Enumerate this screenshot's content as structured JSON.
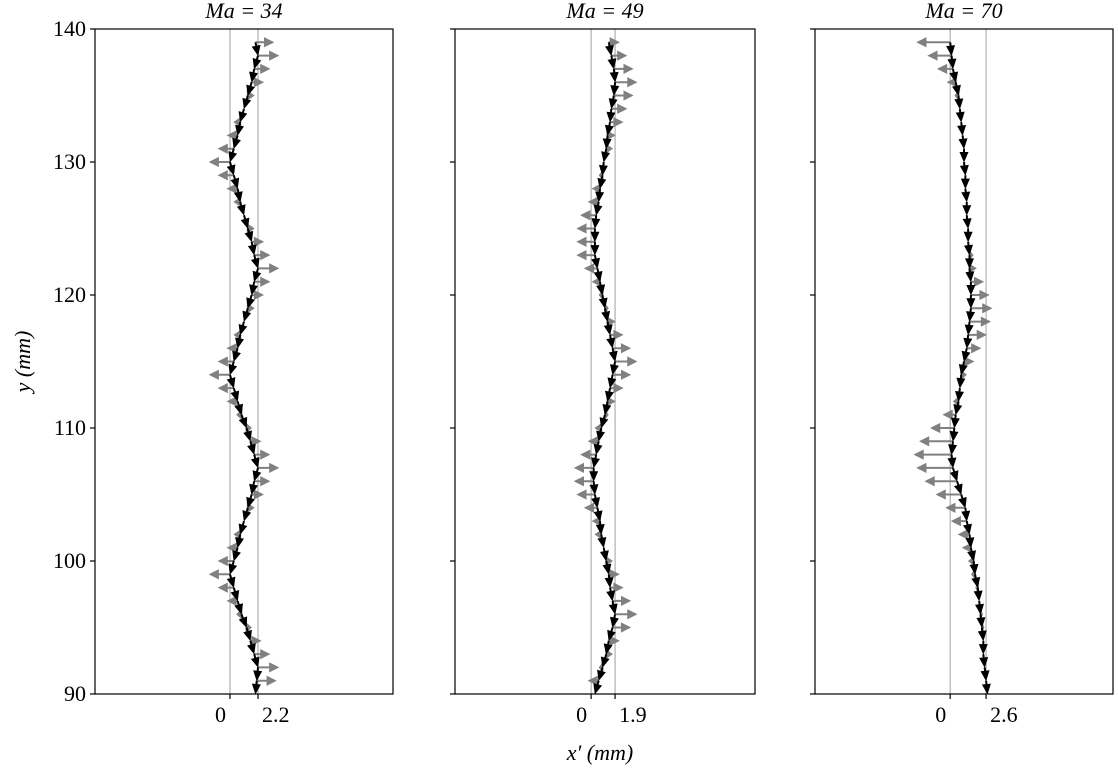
{
  "xlabel": "x′ (mm)",
  "chart_data": [
    {
      "type": "quiver",
      "title": "Ma = 34",
      "ylabel": "y (mm)",
      "show_ytick_labels": true,
      "xlim": [
        -10.6,
        12.8
      ],
      "ylim": [
        90,
        140
      ],
      "xticks": [
        0,
        2.2
      ],
      "yticks": [
        90,
        100,
        110,
        120,
        130,
        140
      ],
      "grid": true,
      "line_color": "#000000",
      "arrow_color": "#808080",
      "y": [
        91,
        92,
        93,
        94,
        95,
        96,
        97,
        98,
        99,
        100,
        101,
        102,
        103,
        104,
        105,
        106,
        107,
        108,
        109,
        110,
        111,
        112,
        113,
        114,
        115,
        116,
        117,
        118,
        119,
        120,
        121,
        122,
        123,
        124,
        125,
        126,
        127,
        128,
        129,
        130,
        131,
        132,
        133,
        134,
        135,
        136,
        137,
        138,
        139
      ],
      "x": [
        2.1,
        2.2,
        1.9,
        1.6,
        1.3,
        0.9,
        0.6,
        0.3,
        0,
        0.3,
        0.6,
        0.8,
        1.1,
        1.4,
        1.7,
        1.9,
        2.2,
        1.9,
        1.6,
        1.3,
        0.9,
        0.6,
        0.3,
        0,
        0.3,
        0.6,
        0.8,
        1.1,
        1.4,
        1.7,
        1.9,
        2.2,
        1.9,
        1.7,
        1.4,
        1.1,
        0.8,
        0.6,
        0.3,
        0,
        0.3,
        0.6,
        0.8,
        1.1,
        1.4,
        1.7,
        1.9,
        2.2,
        2.0
      ],
      "u": [
        1.4,
        1.5,
        1.1,
        0.7,
        0.3,
        -0.3,
        -0.7,
        -1.1,
        -1.5,
        -1.1,
        -0.7,
        -0.4,
        0,
        0.4,
        0.8,
        1.1,
        1.5,
        1.1,
        0.7,
        0.3,
        -0.3,
        -0.7,
        -1.1,
        -1.5,
        -1.1,
        -0.7,
        -0.4,
        0,
        0.4,
        0.8,
        1.1,
        1.5,
        1.1,
        0.8,
        0.4,
        0,
        -0.4,
        -0.7,
        -1.1,
        -1.5,
        -1.1,
        -0.7,
        -0.4,
        0,
        0.4,
        0.8,
        1.1,
        1.5,
        1.3
      ]
    },
    {
      "type": "quiver",
      "title": "Ma = 49",
      "show_ytick_labels": false,
      "xlim": [
        -10.8,
        13.0
      ],
      "ylim": [
        90,
        140
      ],
      "xticks": [
        0,
        1.9
      ],
      "yticks": [
        90,
        100,
        110,
        120,
        130,
        140
      ],
      "grid": true,
      "line_color": "#000000",
      "arrow_color": "#808080",
      "y": [
        91,
        92,
        93,
        94,
        95,
        96,
        97,
        98,
        99,
        100,
        101,
        102,
        103,
        104,
        105,
        106,
        107,
        108,
        109,
        110,
        111,
        112,
        113,
        114,
        115,
        116,
        117,
        118,
        119,
        120,
        121,
        122,
        123,
        124,
        125,
        126,
        127,
        128,
        129,
        130,
        131,
        132,
        133,
        134,
        135,
        136,
        137,
        138,
        139
      ],
      "x": [
        0.6,
        0.9,
        1.2,
        1.4,
        1.7,
        1.9,
        1.7,
        1.5,
        1.4,
        1.2,
        1.0,
        0.8,
        0.7,
        0.5,
        0.3,
        0.2,
        0.2,
        0.4,
        0.6,
        0.8,
        1.1,
        1.3,
        1.5,
        1.7,
        1.9,
        1.7,
        1.5,
        1.3,
        1.1,
        0.9,
        0.7,
        0.5,
        0.3,
        0.3,
        0.3,
        0.4,
        0.6,
        0.7,
        0.9,
        1.0,
        1.2,
        1.3,
        1.5,
        1.6,
        1.8,
        1.9,
        1.8,
        1.6,
        1.4
      ],
      "u": [
        -0.7,
        -0.2,
        0.4,
        0.7,
        1.3,
        1.6,
        1.3,
        0.9,
        0.7,
        0.4,
        0,
        -0.4,
        -0.5,
        -0.9,
        -1.3,
        -1.4,
        -1.4,
        -1.1,
        -0.7,
        -0.4,
        0.2,
        0.5,
        0.9,
        1.3,
        1.6,
        1.3,
        0.9,
        0.5,
        0.2,
        -0.2,
        -0.5,
        -0.9,
        -1.3,
        -1.3,
        -1.3,
        -1.1,
        -0.7,
        -0.5,
        -0.2,
        0,
        0.4,
        0.5,
        0.9,
        1.1,
        1.4,
        1.6,
        1.4,
        1.1,
        0.7
      ]
    },
    {
      "type": "quiver",
      "title": "Ma = 70",
      "show_ytick_labels": false,
      "xlim": [
        -9.8,
        11.8
      ],
      "ylim": [
        90,
        140
      ],
      "xticks": [
        0,
        2.6
      ],
      "yticks": [
        90,
        100,
        110,
        120,
        130,
        140
      ],
      "grid": true,
      "line_color": "#000000",
      "arrow_color": "#808080",
      "y": [
        91,
        92,
        93,
        94,
        95,
        96,
        97,
        98,
        99,
        100,
        101,
        102,
        103,
        104,
        105,
        106,
        107,
        108,
        109,
        110,
        111,
        112,
        113,
        114,
        115,
        116,
        117,
        118,
        119,
        120,
        121,
        122,
        123,
        124,
        125,
        126,
        127,
        128,
        129,
        130,
        131,
        132,
        133,
        134,
        135,
        136,
        137,
        138,
        139
      ],
      "x": [
        2.6,
        2.5,
        2.4,
        2.4,
        2.3,
        2.2,
        2.1,
        2.0,
        1.8,
        1.7,
        1.5,
        1.4,
        1.2,
        1.1,
        0.8,
        0.5,
        0.2,
        0.1,
        0.2,
        0.3,
        0.4,
        0.6,
        0.7,
        0.8,
        1.0,
        1.2,
        1.3,
        1.4,
        1.5,
        1.5,
        1.5,
        1.4,
        1.4,
        1.3,
        1.3,
        1.2,
        1.2,
        1.1,
        1.1,
        1.0,
        1.0,
        0.9,
        0.8,
        0.7,
        0.6,
        0.4,
        0.2,
        0.1,
        0.0
      ],
      "u": [
        0,
        0,
        0,
        0,
        0.1,
        0.1,
        0,
        -0.1,
        -0.2,
        -0.3,
        -0.5,
        -0.7,
        -1.0,
        -1.3,
        -1.7,
        -2.2,
        -2.5,
        -2.6,
        -2.3,
        -1.6,
        -0.8,
        -0.3,
        0,
        0.3,
        0.6,
        0.9,
        1.2,
        1.4,
        1.4,
        1.2,
        0.8,
        0.4,
        0.2,
        0,
        0,
        0,
        0,
        0,
        0,
        0,
        0,
        0,
        0,
        0,
        -0.2,
        -0.5,
        -1.0,
        -1.6,
        -2.3
      ]
    }
  ]
}
